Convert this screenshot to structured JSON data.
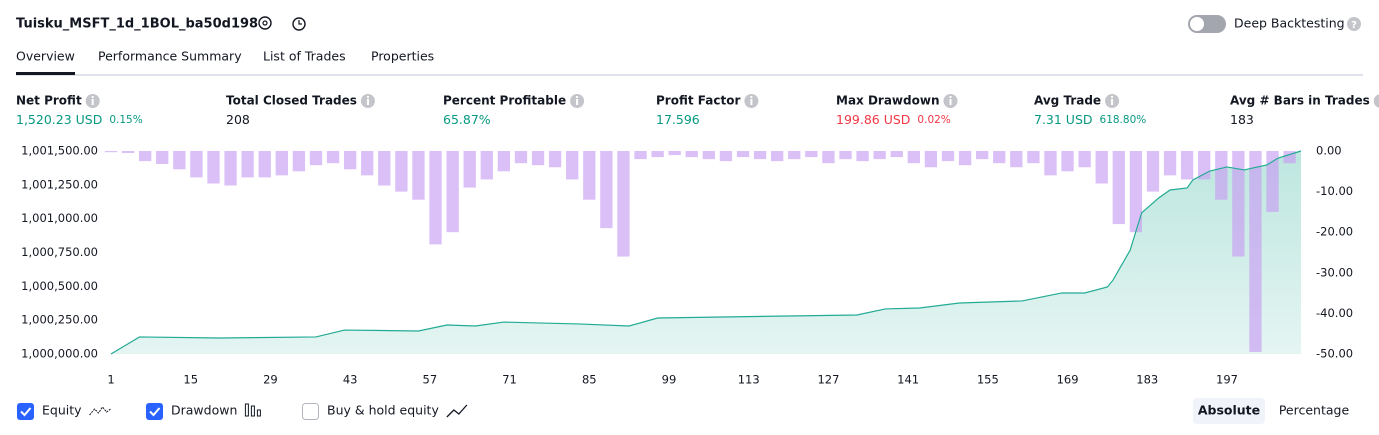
{
  "header": {
    "title": "Tuisku_MSFT_1d_1BOL_ba50d198",
    "deep_backtesting": "Deep Backtesting"
  },
  "tabs": [
    "Overview",
    "Performance Summary",
    "List of Trades",
    "Properties"
  ],
  "metrics": [
    {
      "label": "Net Profit",
      "value": "1,520.23 USD",
      "extra": "0.15%",
      "color": "#089981"
    },
    {
      "label": "Total Closed Trades",
      "value": "208",
      "color": "#131722"
    },
    {
      "label": "Percent Profitable",
      "value": "65.87%",
      "color": "#089981"
    },
    {
      "label": "Profit Factor",
      "value": "17.596",
      "color": "#089981"
    },
    {
      "label": "Max Drawdown",
      "value": "199.86 USD",
      "extra": "0.02%",
      "color": "#f23645"
    },
    {
      "label": "Avg Trade",
      "value": "7.31 USD",
      "extra": "618.80%",
      "color": "#089981"
    },
    {
      "label": "Avg # Bars in Trades",
      "value": "183",
      "color": "#131722"
    }
  ],
  "chart_data": {
    "type": "combo",
    "xlim": [
      1,
      210
    ],
    "xticks": [
      1,
      15,
      29,
      43,
      57,
      71,
      85,
      99,
      113,
      127,
      141,
      155,
      169,
      183,
      197
    ],
    "ylim": [
      1000000,
      1001500
    ],
    "yticks": [
      {
        "value": 1000000,
        "label": "1,000,000.00"
      },
      {
        "value": 1000250,
        "label": "1,000,250.00"
      },
      {
        "value": 1000500,
        "label": "1,000,500.00"
      },
      {
        "value": 1000750,
        "label": "1,000,750.00"
      },
      {
        "value": 1001000,
        "label": "1,001,000.00"
      },
      {
        "value": 1001250,
        "label": "1,001,250.00"
      },
      {
        "value": 1001500,
        "label": "1,001,500.00"
      }
    ],
    "y2lim": [
      -50,
      0
    ],
    "y2ticks": [
      {
        "value": 0,
        "label": "0.00"
      },
      {
        "value": -10,
        "label": "-10.00"
      },
      {
        "value": -20,
        "label": "-20.00"
      },
      {
        "value": -30,
        "label": "-30.00"
      },
      {
        "value": -40,
        "label": "-40.00"
      },
      {
        "value": -50,
        "label": "-50.00"
      }
    ],
    "series": [
      {
        "name": "Equity",
        "type": "area",
        "checked": true,
        "color": "#22ab94",
        "x": [
          1,
          6,
          20,
          37,
          42,
          55,
          60,
          65,
          70,
          83,
          92,
          97,
          120,
          132,
          137,
          143,
          150,
          161,
          168,
          172,
          176,
          177,
          180,
          182,
          185,
          187,
          190,
          191,
          194,
          197,
          200,
          204,
          206,
          210
        ],
        "values": [
          1000000,
          1000126,
          1000118,
          1000126,
          1000177,
          1000170,
          1000214,
          1000207,
          1000236,
          1000222,
          1000207,
          1000266,
          1000281,
          1000288,
          1000333,
          1000340,
          1000377,
          1000392,
          1000451,
          1000451,
          1000495,
          1000547,
          1000768,
          1001042,
          1001153,
          1001212,
          1001227,
          1001286,
          1001352,
          1001382,
          1001360,
          1001397,
          1001448,
          1001500
        ]
      },
      {
        "name": "Drawdown",
        "type": "bar",
        "axis": "y2",
        "checked": true,
        "color": "#c89cf2",
        "x": [
          1,
          4,
          7,
          10,
          13,
          16,
          19,
          22,
          25,
          28,
          31,
          34,
          37,
          40,
          43,
          46,
          49,
          52,
          55,
          58,
          61,
          64,
          67,
          70,
          73,
          76,
          79,
          82,
          85,
          88,
          91,
          94,
          97,
          100,
          103,
          106,
          109,
          112,
          115,
          118,
          121,
          124,
          127,
          130,
          133,
          136,
          139,
          142,
          145,
          148,
          151,
          154,
          157,
          160,
          163,
          166,
          169,
          172,
          175,
          178,
          181,
          184,
          187,
          190,
          193,
          196,
          199,
          202,
          205,
          208
        ],
        "values": [
          -0.3,
          -0.5,
          -2.5,
          -3.2,
          -4.5,
          -6.5,
          -8,
          -8.5,
          -6.5,
          -6.5,
          -6,
          -5,
          -3.5,
          -3,
          -4.5,
          -6,
          -8.5,
          -10,
          -12,
          -23,
          -20,
          -9,
          -7,
          -5,
          -3,
          -3.5,
          -4,
          -7,
          -12,
          -19,
          -26,
          -2,
          -1.5,
          -1,
          -1.5,
          -2,
          -2.5,
          -1.5,
          -2,
          -2.5,
          -2,
          -1.5,
          -3,
          -2,
          -2.5,
          -2,
          -1.5,
          -3,
          -4,
          -2.5,
          -3.5,
          -2,
          -3,
          -4,
          -3,
          -6,
          -5,
          -4,
          -8,
          -18,
          -20,
          -10,
          -6,
          -7,
          -7,
          -12,
          -26,
          -49.5,
          -15,
          -3
        ]
      }
    ],
    "buy_hold": {
      "label": "Buy & hold equity",
      "checked": false
    }
  },
  "buttons": [
    "Absolute",
    "Percentage"
  ]
}
